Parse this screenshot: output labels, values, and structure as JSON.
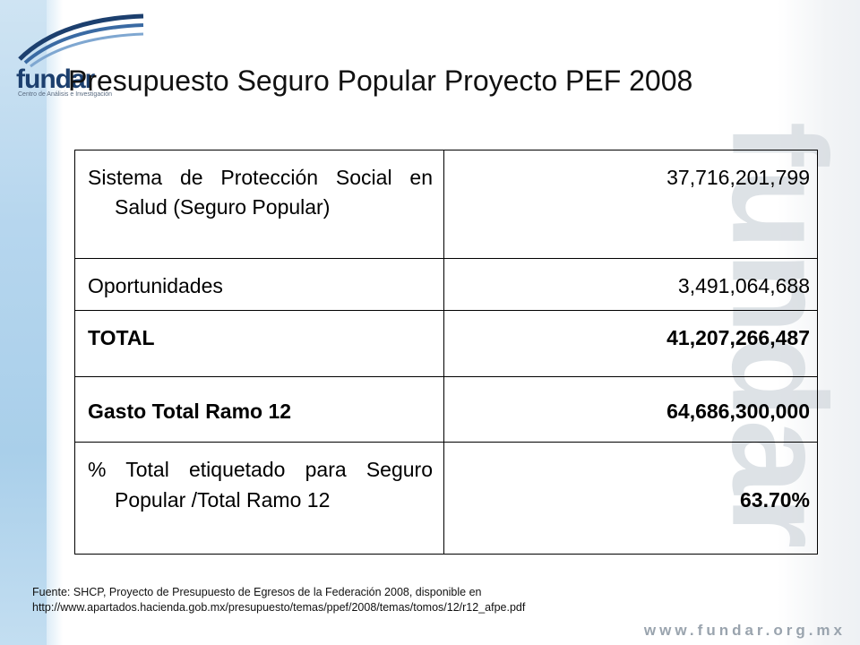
{
  "logo": {
    "name": "fundar",
    "subtitle": "Centro de Análisis e Investigación"
  },
  "slide": {
    "title": "Presupuesto Seguro Popular Proyecto PEF 2008"
  },
  "table": {
    "rows": [
      {
        "label": "Sistema de Protección Social en Salud (Seguro Popular)",
        "value": "37,716,201,799",
        "bold": false
      },
      {
        "label": "Oportunidades",
        "value": "3,491,064,688",
        "bold": false
      },
      {
        "label": "TOTAL",
        "value": "41,207,266,487",
        "bold": true
      },
      {
        "label": "Gasto Total Ramo 12",
        "value": "64,686,300,000",
        "bold": true
      },
      {
        "label": "% Total etiquetado para Seguro Popular /Total Ramo 12",
        "value": "63.70%",
        "bold": false
      }
    ]
  },
  "footnote": {
    "line1": "Fuente: SHCP, Proyecto de Presupuesto de Egresos de la Federación 2008, disponible en",
    "line2": "http://www.apartados.hacienda.gob.mx/presupuesto/temas/ppef/2008/temas/tomos/12/r12_afpe.pdf"
  },
  "footer": {
    "website": "www.fundar.org.mx",
    "watermark": "fundar"
  },
  "colors": {
    "logo_blue": "#1c3f6e",
    "band_blue": "#b6d6ee",
    "watermark_gray": "#d8dde2"
  }
}
